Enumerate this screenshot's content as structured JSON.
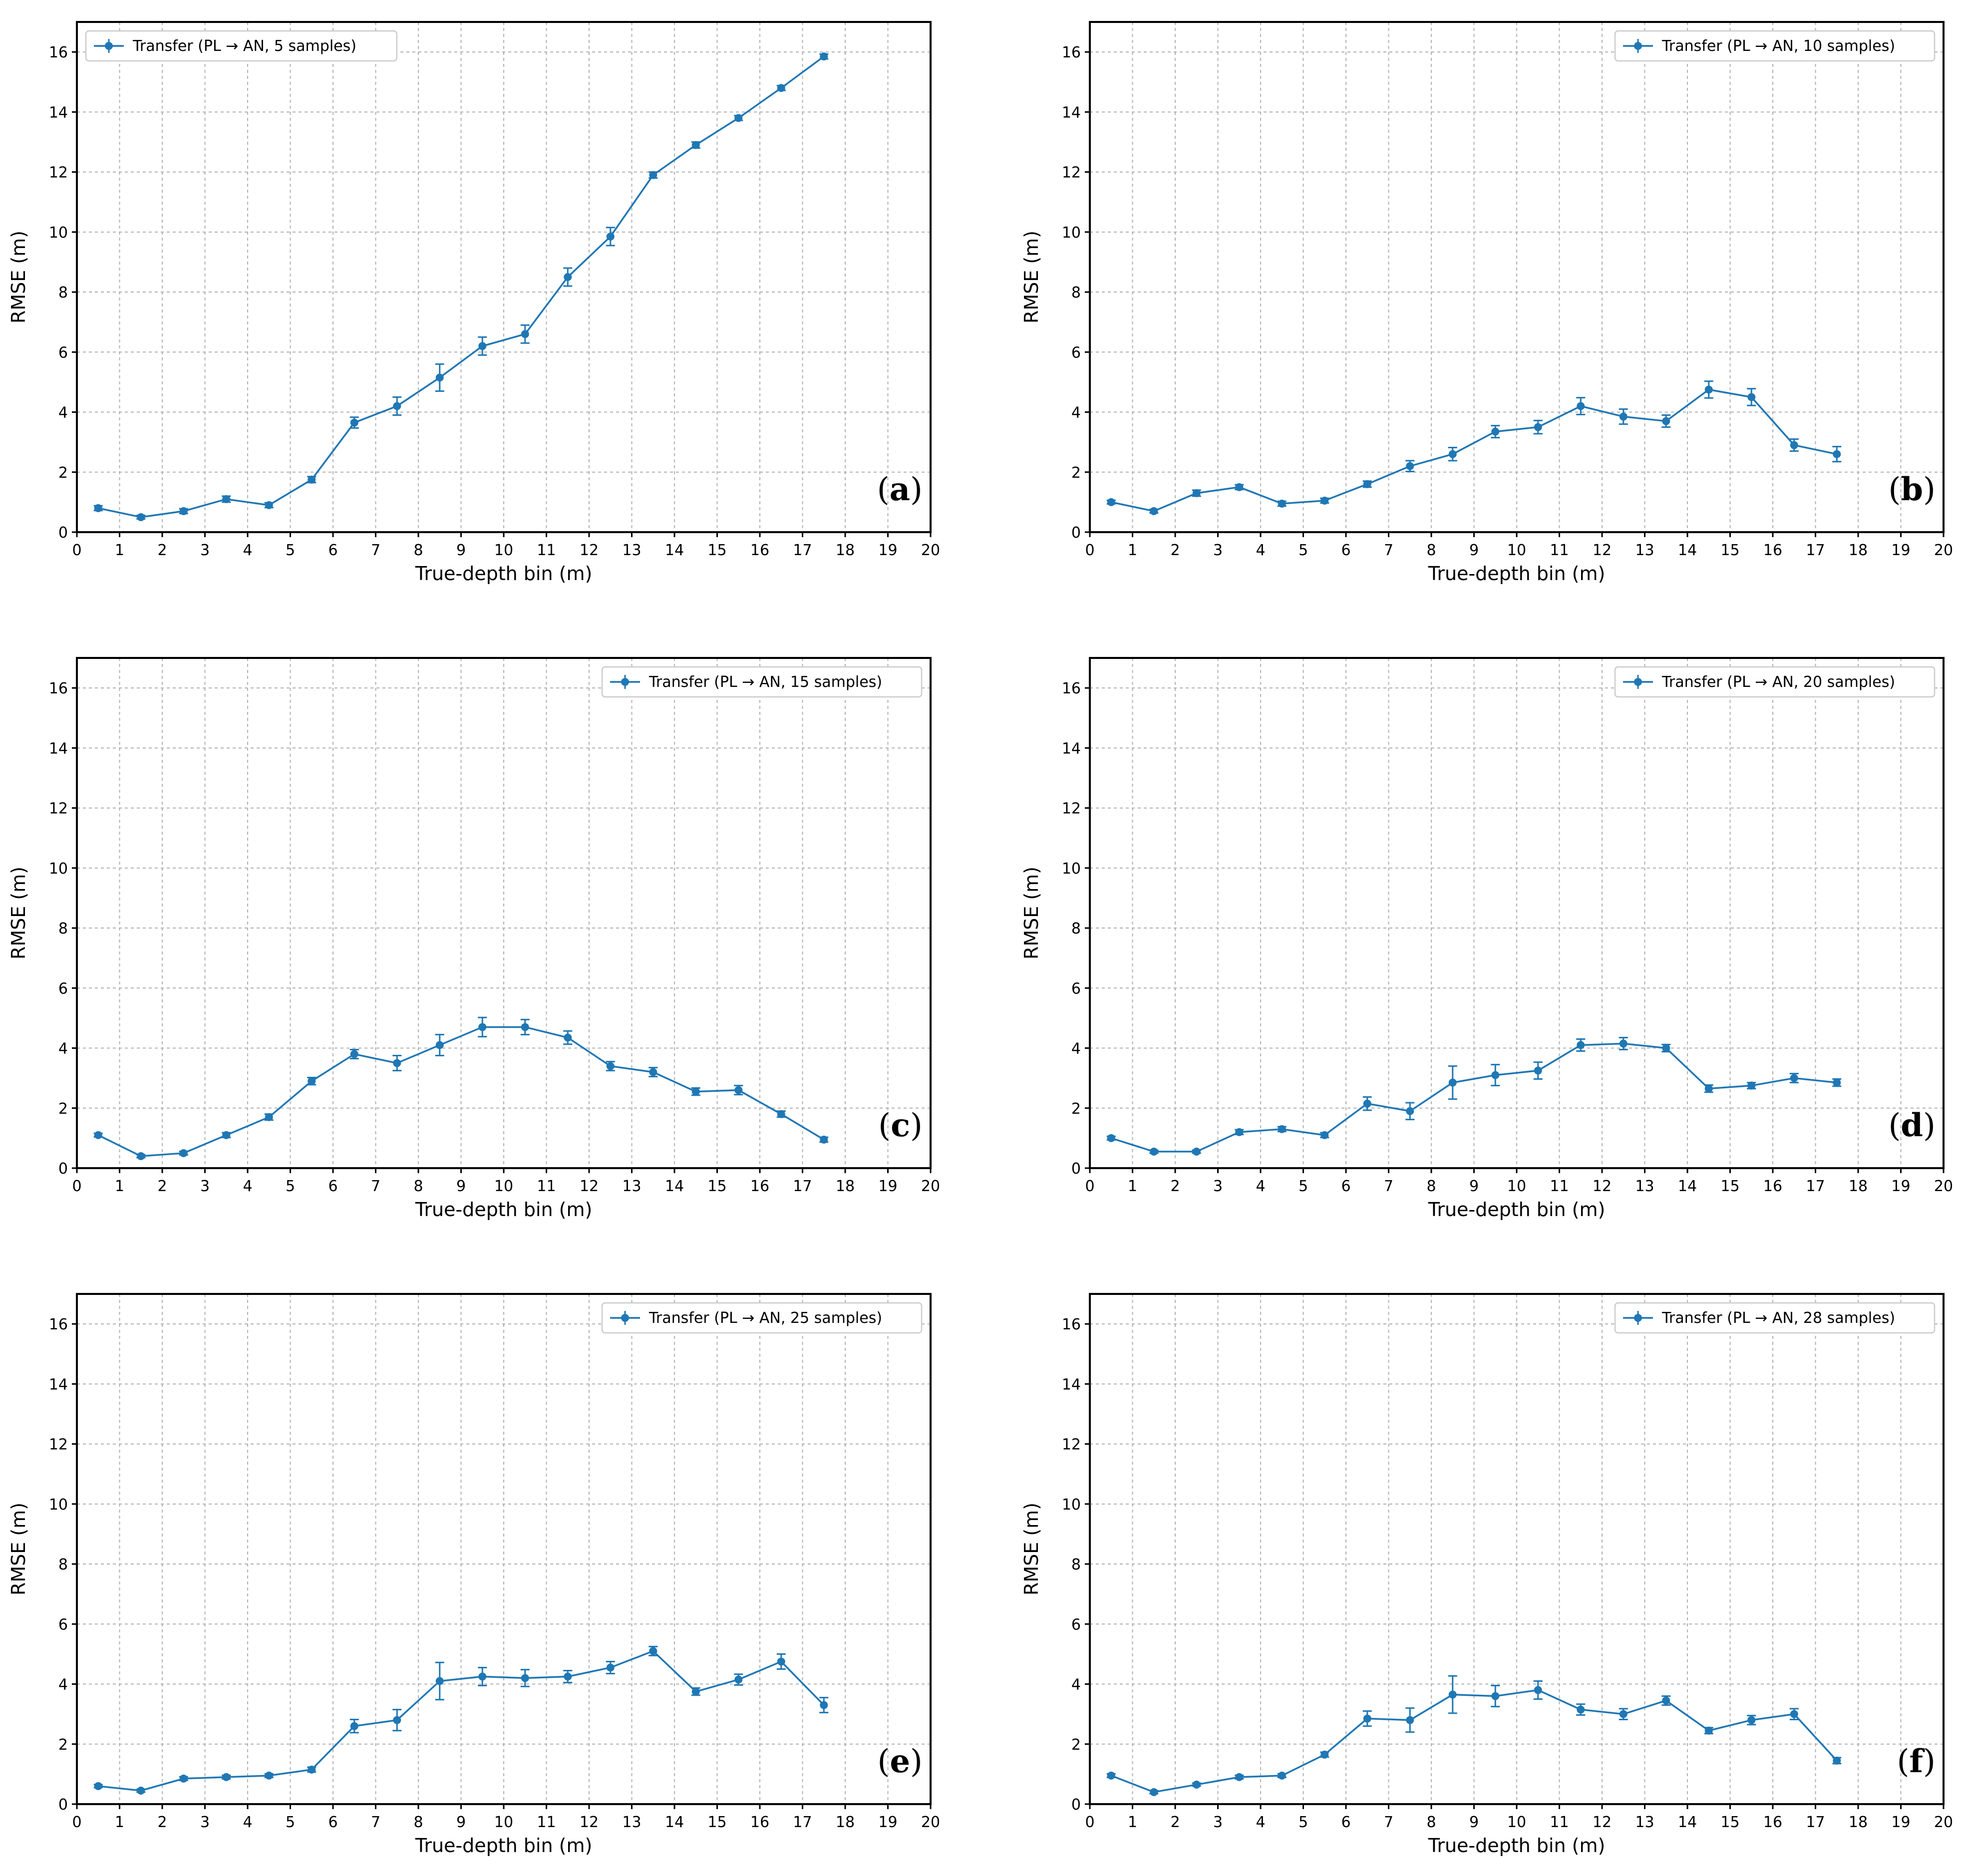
{
  "figure": {
    "panel_prefix": "(",
    "panel_suffix": ")",
    "series_color": "#1f77b4"
  },
  "chart_data": [
    {
      "panel": "a",
      "type": "line",
      "xlabel": "True-depth bin (m)",
      "ylabel": "RMSE (m)",
      "xlim": [
        0,
        20
      ],
      "ylim": [
        0,
        17
      ],
      "xticks": [
        0,
        1,
        2,
        3,
        4,
        5,
        6,
        7,
        8,
        9,
        10,
        11,
        12,
        13,
        14,
        15,
        16,
        17,
        18,
        19,
        20
      ],
      "yticks": [
        0,
        2,
        4,
        6,
        8,
        10,
        12,
        14,
        16
      ],
      "grid": true,
      "legend_position": "upper-left",
      "series": [
        {
          "name": "Transfer (PL → AN, 5 samples)",
          "x": [
            0.5,
            1.5,
            2.5,
            3.5,
            4.5,
            5.5,
            6.5,
            7.5,
            8.5,
            9.5,
            10.5,
            11.5,
            12.5,
            13.5,
            14.5,
            15.5,
            16.5,
            17.5
          ],
          "y": [
            0.8,
            0.5,
            0.7,
            1.1,
            0.9,
            1.75,
            3.65,
            4.2,
            5.15,
            6.2,
            6.6,
            8.5,
            9.85,
            11.9,
            12.9,
            13.8,
            14.8,
            15.85
          ],
          "err": [
            0.08,
            0.06,
            0.08,
            0.1,
            0.08,
            0.1,
            0.18,
            0.3,
            0.45,
            0.3,
            0.3,
            0.3,
            0.3,
            0.1,
            0.1,
            0.08,
            0.08,
            0.08
          ]
        }
      ]
    },
    {
      "panel": "b",
      "type": "line",
      "xlabel": "True-depth bin (m)",
      "ylabel": "RMSE (m)",
      "xlim": [
        0,
        20
      ],
      "ylim": [
        0,
        17
      ],
      "xticks": [
        0,
        1,
        2,
        3,
        4,
        5,
        6,
        7,
        8,
        9,
        10,
        11,
        12,
        13,
        14,
        15,
        16,
        17,
        18,
        19,
        20
      ],
      "yticks": [
        0,
        2,
        4,
        6,
        8,
        10,
        12,
        14,
        16
      ],
      "grid": true,
      "legend_position": "upper-right",
      "series": [
        {
          "name": "Transfer (PL → AN, 10 samples)",
          "x": [
            0.5,
            1.5,
            2.5,
            3.5,
            4.5,
            5.5,
            6.5,
            7.5,
            8.5,
            9.5,
            10.5,
            11.5,
            12.5,
            13.5,
            14.5,
            15.5,
            16.5,
            17.5
          ],
          "y": [
            1.0,
            0.7,
            1.3,
            1.5,
            0.95,
            1.05,
            1.6,
            2.2,
            2.6,
            3.35,
            3.5,
            4.2,
            3.85,
            3.7,
            4.75,
            4.5,
            2.9,
            2.6
          ],
          "err": [
            0.06,
            0.06,
            0.1,
            0.08,
            0.08,
            0.08,
            0.1,
            0.18,
            0.22,
            0.2,
            0.22,
            0.28,
            0.25,
            0.2,
            0.28,
            0.28,
            0.2,
            0.25
          ]
        }
      ]
    },
    {
      "panel": "c",
      "type": "line",
      "xlabel": "True-depth bin (m)",
      "ylabel": "RMSE (m)",
      "xlim": [
        0,
        20
      ],
      "ylim": [
        0,
        17
      ],
      "xticks": [
        0,
        1,
        2,
        3,
        4,
        5,
        6,
        7,
        8,
        9,
        10,
        11,
        12,
        13,
        14,
        15,
        16,
        17,
        18,
        19,
        20
      ],
      "yticks": [
        0,
        2,
        4,
        6,
        8,
        10,
        12,
        14,
        16
      ],
      "grid": true,
      "legend_position": "upper-right",
      "series": [
        {
          "name": "Transfer (PL → AN, 15 samples)",
          "x": [
            0.5,
            1.5,
            2.5,
            3.5,
            4.5,
            5.5,
            6.5,
            7.5,
            8.5,
            9.5,
            10.5,
            11.5,
            12.5,
            13.5,
            14.5,
            15.5,
            16.5,
            17.5
          ],
          "y": [
            1.1,
            0.4,
            0.5,
            1.1,
            1.7,
            2.9,
            3.8,
            3.5,
            4.1,
            4.7,
            4.7,
            4.35,
            3.4,
            3.2,
            2.55,
            2.6,
            1.8,
            0.95
          ],
          "err": [
            0.06,
            0.05,
            0.06,
            0.08,
            0.1,
            0.12,
            0.15,
            0.25,
            0.35,
            0.32,
            0.25,
            0.22,
            0.15,
            0.15,
            0.12,
            0.15,
            0.1,
            0.08
          ]
        }
      ]
    },
    {
      "panel": "d",
      "type": "line",
      "xlabel": "True-depth bin (m)",
      "ylabel": "RMSE (m)",
      "xlim": [
        0,
        20
      ],
      "ylim": [
        0,
        17
      ],
      "xticks": [
        0,
        1,
        2,
        3,
        4,
        5,
        6,
        7,
        8,
        9,
        10,
        11,
        12,
        13,
        14,
        15,
        16,
        17,
        18,
        19,
        20
      ],
      "yticks": [
        0,
        2,
        4,
        6,
        8,
        10,
        12,
        14,
        16
      ],
      "grid": true,
      "legend_position": "upper-right",
      "series": [
        {
          "name": "Transfer (PL → AN, 20 samples)",
          "x": [
            0.5,
            1.5,
            2.5,
            3.5,
            4.5,
            5.5,
            6.5,
            7.5,
            8.5,
            9.5,
            10.5,
            11.5,
            12.5,
            13.5,
            14.5,
            15.5,
            16.5,
            17.5
          ],
          "y": [
            1.0,
            0.55,
            0.55,
            1.2,
            1.3,
            1.1,
            2.15,
            1.9,
            2.85,
            3.1,
            3.25,
            4.1,
            4.15,
            4.0,
            2.65,
            2.75,
            3.0,
            2.85
          ],
          "err": [
            0.06,
            0.05,
            0.05,
            0.08,
            0.08,
            0.08,
            0.22,
            0.28,
            0.55,
            0.35,
            0.28,
            0.2,
            0.2,
            0.12,
            0.12,
            0.1,
            0.15,
            0.12
          ]
        }
      ]
    },
    {
      "panel": "e",
      "type": "line",
      "xlabel": "True-depth bin (m)",
      "ylabel": "RMSE (m)",
      "xlim": [
        0,
        20
      ],
      "ylim": [
        0,
        17
      ],
      "xticks": [
        0,
        1,
        2,
        3,
        4,
        5,
        6,
        7,
        8,
        9,
        10,
        11,
        12,
        13,
        14,
        15,
        16,
        17,
        18,
        19,
        20
      ],
      "yticks": [
        0,
        2,
        4,
        6,
        8,
        10,
        12,
        14,
        16
      ],
      "grid": true,
      "legend_position": "upper-right",
      "series": [
        {
          "name": "Transfer (PL → AN, 25 samples)",
          "x": [
            0.5,
            1.5,
            2.5,
            3.5,
            4.5,
            5.5,
            6.5,
            7.5,
            8.5,
            9.5,
            10.5,
            11.5,
            12.5,
            13.5,
            14.5,
            15.5,
            16.5,
            17.5
          ],
          "y": [
            0.6,
            0.45,
            0.85,
            0.9,
            0.95,
            1.15,
            2.6,
            2.8,
            4.1,
            4.25,
            4.2,
            4.25,
            4.55,
            5.1,
            3.75,
            4.15,
            4.75,
            3.3
          ],
          "err": [
            0.05,
            0.05,
            0.06,
            0.06,
            0.06,
            0.08,
            0.22,
            0.35,
            0.62,
            0.3,
            0.28,
            0.2,
            0.2,
            0.15,
            0.12,
            0.18,
            0.25,
            0.25
          ]
        }
      ]
    },
    {
      "panel": "f",
      "type": "line",
      "xlabel": "True-depth bin (m)",
      "ylabel": "RMSE (m)",
      "xlim": [
        0,
        20
      ],
      "ylim": [
        0,
        17
      ],
      "xticks": [
        0,
        1,
        2,
        3,
        4,
        5,
        6,
        7,
        8,
        9,
        10,
        11,
        12,
        13,
        14,
        15,
        16,
        17,
        18,
        19,
        20
      ],
      "yticks": [
        0,
        2,
        4,
        6,
        8,
        10,
        12,
        14,
        16
      ],
      "grid": true,
      "legend_position": "upper-right",
      "series": [
        {
          "name": "Transfer (PL → AN, 28 samples)",
          "x": [
            0.5,
            1.5,
            2.5,
            3.5,
            4.5,
            5.5,
            6.5,
            7.5,
            8.5,
            9.5,
            10.5,
            11.5,
            12.5,
            13.5,
            14.5,
            15.5,
            16.5,
            17.5
          ],
          "y": [
            0.95,
            0.4,
            0.65,
            0.9,
            0.95,
            1.65,
            2.85,
            2.8,
            3.65,
            3.6,
            3.8,
            3.15,
            3.0,
            3.45,
            2.45,
            2.8,
            3.0,
            1.45
          ],
          "err": [
            0.06,
            0.05,
            0.05,
            0.06,
            0.06,
            0.08,
            0.25,
            0.4,
            0.62,
            0.35,
            0.3,
            0.18,
            0.18,
            0.15,
            0.1,
            0.15,
            0.18,
            0.1
          ]
        }
      ]
    }
  ]
}
